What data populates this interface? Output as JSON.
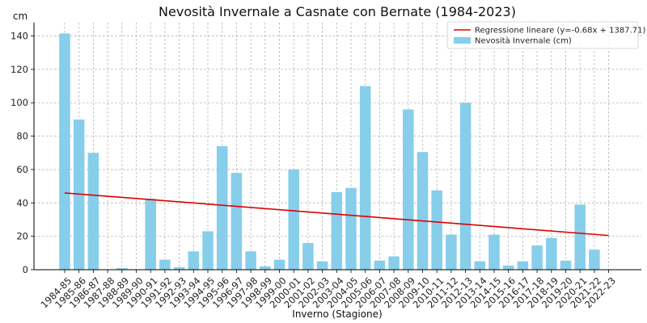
{
  "chart_data": {
    "type": "bar",
    "title": "Nevosità Invernale a Casnate con Bernate (1984-2023)",
    "xlabel": "Inverno (Stagione)",
    "ylabel": "cm",
    "ylim": [
      0,
      148
    ],
    "yticks": [
      0,
      20,
      40,
      60,
      80,
      100,
      120,
      140
    ],
    "grid": true,
    "legend_position": "top-right",
    "categories": [
      "1984-85",
      "1985-86",
      "1986-87",
      "1987-88",
      "1988-89",
      "1989-90",
      "1990-91",
      "1991-92",
      "1992-93",
      "1993-94",
      "1994-95",
      "1995-96",
      "1996-97",
      "1997-98",
      "1998-99",
      "1999-00",
      "2000-01",
      "2001-02",
      "2002-03",
      "2003-04",
      "2004-05",
      "2005-06",
      "2006-07",
      "2007-08",
      "2008-09",
      "2009-10",
      "2010-11",
      "2011-12",
      "2012-13",
      "2013-14",
      "2014-15",
      "2015-16",
      "2016-17",
      "2017-18",
      "2018-19",
      "2019-20",
      "2020-21",
      "2021-22",
      "2022-23"
    ],
    "series": [
      {
        "name": "Nevosità Invernale (cm)",
        "type": "bar",
        "color": "#87ceeb",
        "values": [
          141.5,
          90,
          70,
          0,
          1,
          0,
          42.5,
          6,
          1.5,
          11,
          23,
          74,
          58,
          11,
          2,
          6,
          60,
          16,
          5,
          46.5,
          49,
          110,
          5.5,
          8,
          96,
          70.5,
          47.5,
          21,
          100,
          5,
          21,
          2.5,
          5,
          14.5,
          19,
          5.5,
          39,
          12,
          0
        ]
      },
      {
        "name": "Regressione lineare (y=-0.68x + 1387.71)",
        "type": "line",
        "color": "#dd0000",
        "x": [
          "1984-85",
          "2022-23"
        ],
        "values": [
          46,
          20.5
        ]
      }
    ]
  }
}
